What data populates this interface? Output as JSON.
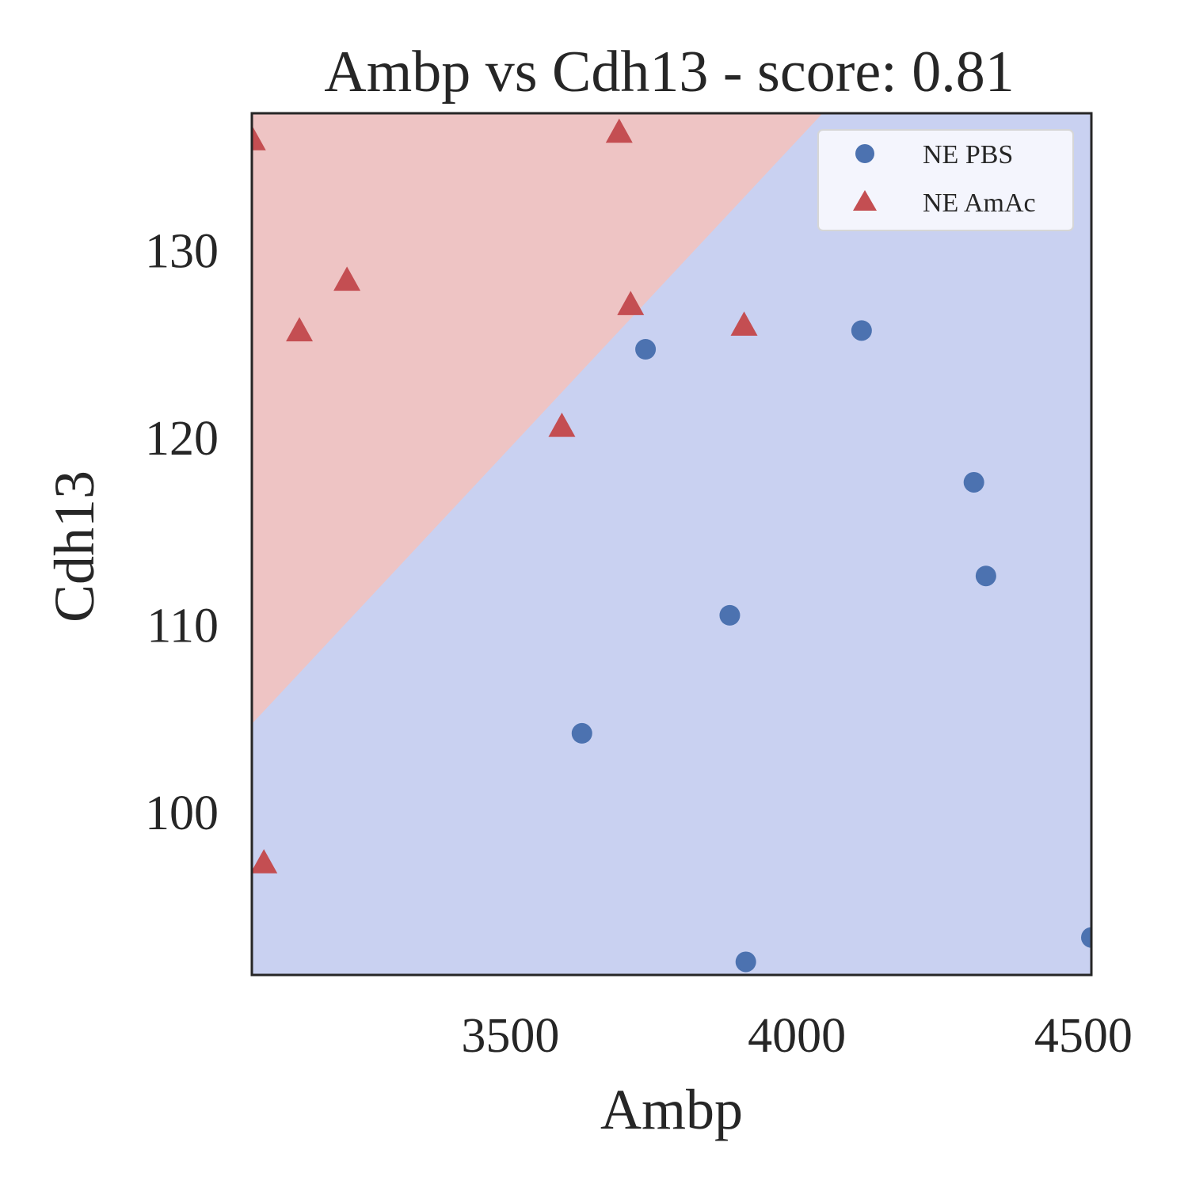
{
  "chart_data": {
    "type": "scatter",
    "title": "Ambp vs Cdh13 - score: 0.81",
    "xlabel": "Ambp",
    "ylabel": "Cdh13",
    "xlim": [
      3049,
      4514
    ],
    "ylim": [
      91.3,
      137.3
    ],
    "xticks": [
      3500,
      4000,
      4500
    ],
    "yticks": [
      100,
      110,
      120,
      130
    ],
    "grid": false,
    "legend_position": "top-right",
    "decision_boundary": {
      "description": "linear",
      "points": [
        [
          3049,
          104.7
        ],
        [
          4045,
          137.3
        ]
      ],
      "upper_left_class": "NE AmAc",
      "lower_right_class": "NE PBS",
      "colors": {
        "NE AmAc": "#eec4c4",
        "NE PBS": "#c9d1f1"
      }
    },
    "series": [
      {
        "name": "NE PBS",
        "marker": "circle",
        "color": "#4c72b0",
        "points": [
          [
            3736,
            124.7
          ],
          [
            4113,
            125.7
          ],
          [
            4309,
            117.6
          ],
          [
            4330,
            112.6
          ],
          [
            3883,
            110.5
          ],
          [
            3625,
            104.2
          ],
          [
            3911,
            92.0
          ],
          [
            4514,
            93.3
          ]
        ]
      },
      {
        "name": "NE AmAc",
        "marker": "triangle",
        "color": "#c44e52",
        "points": [
          [
            3050,
            135.9
          ],
          [
            3690,
            136.3
          ],
          [
            3215,
            128.4
          ],
          [
            3132,
            125.7
          ],
          [
            3710,
            127.1
          ],
          [
            3908,
            126.0
          ],
          [
            3590,
            120.6
          ],
          [
            3070,
            97.3
          ]
        ]
      }
    ]
  }
}
